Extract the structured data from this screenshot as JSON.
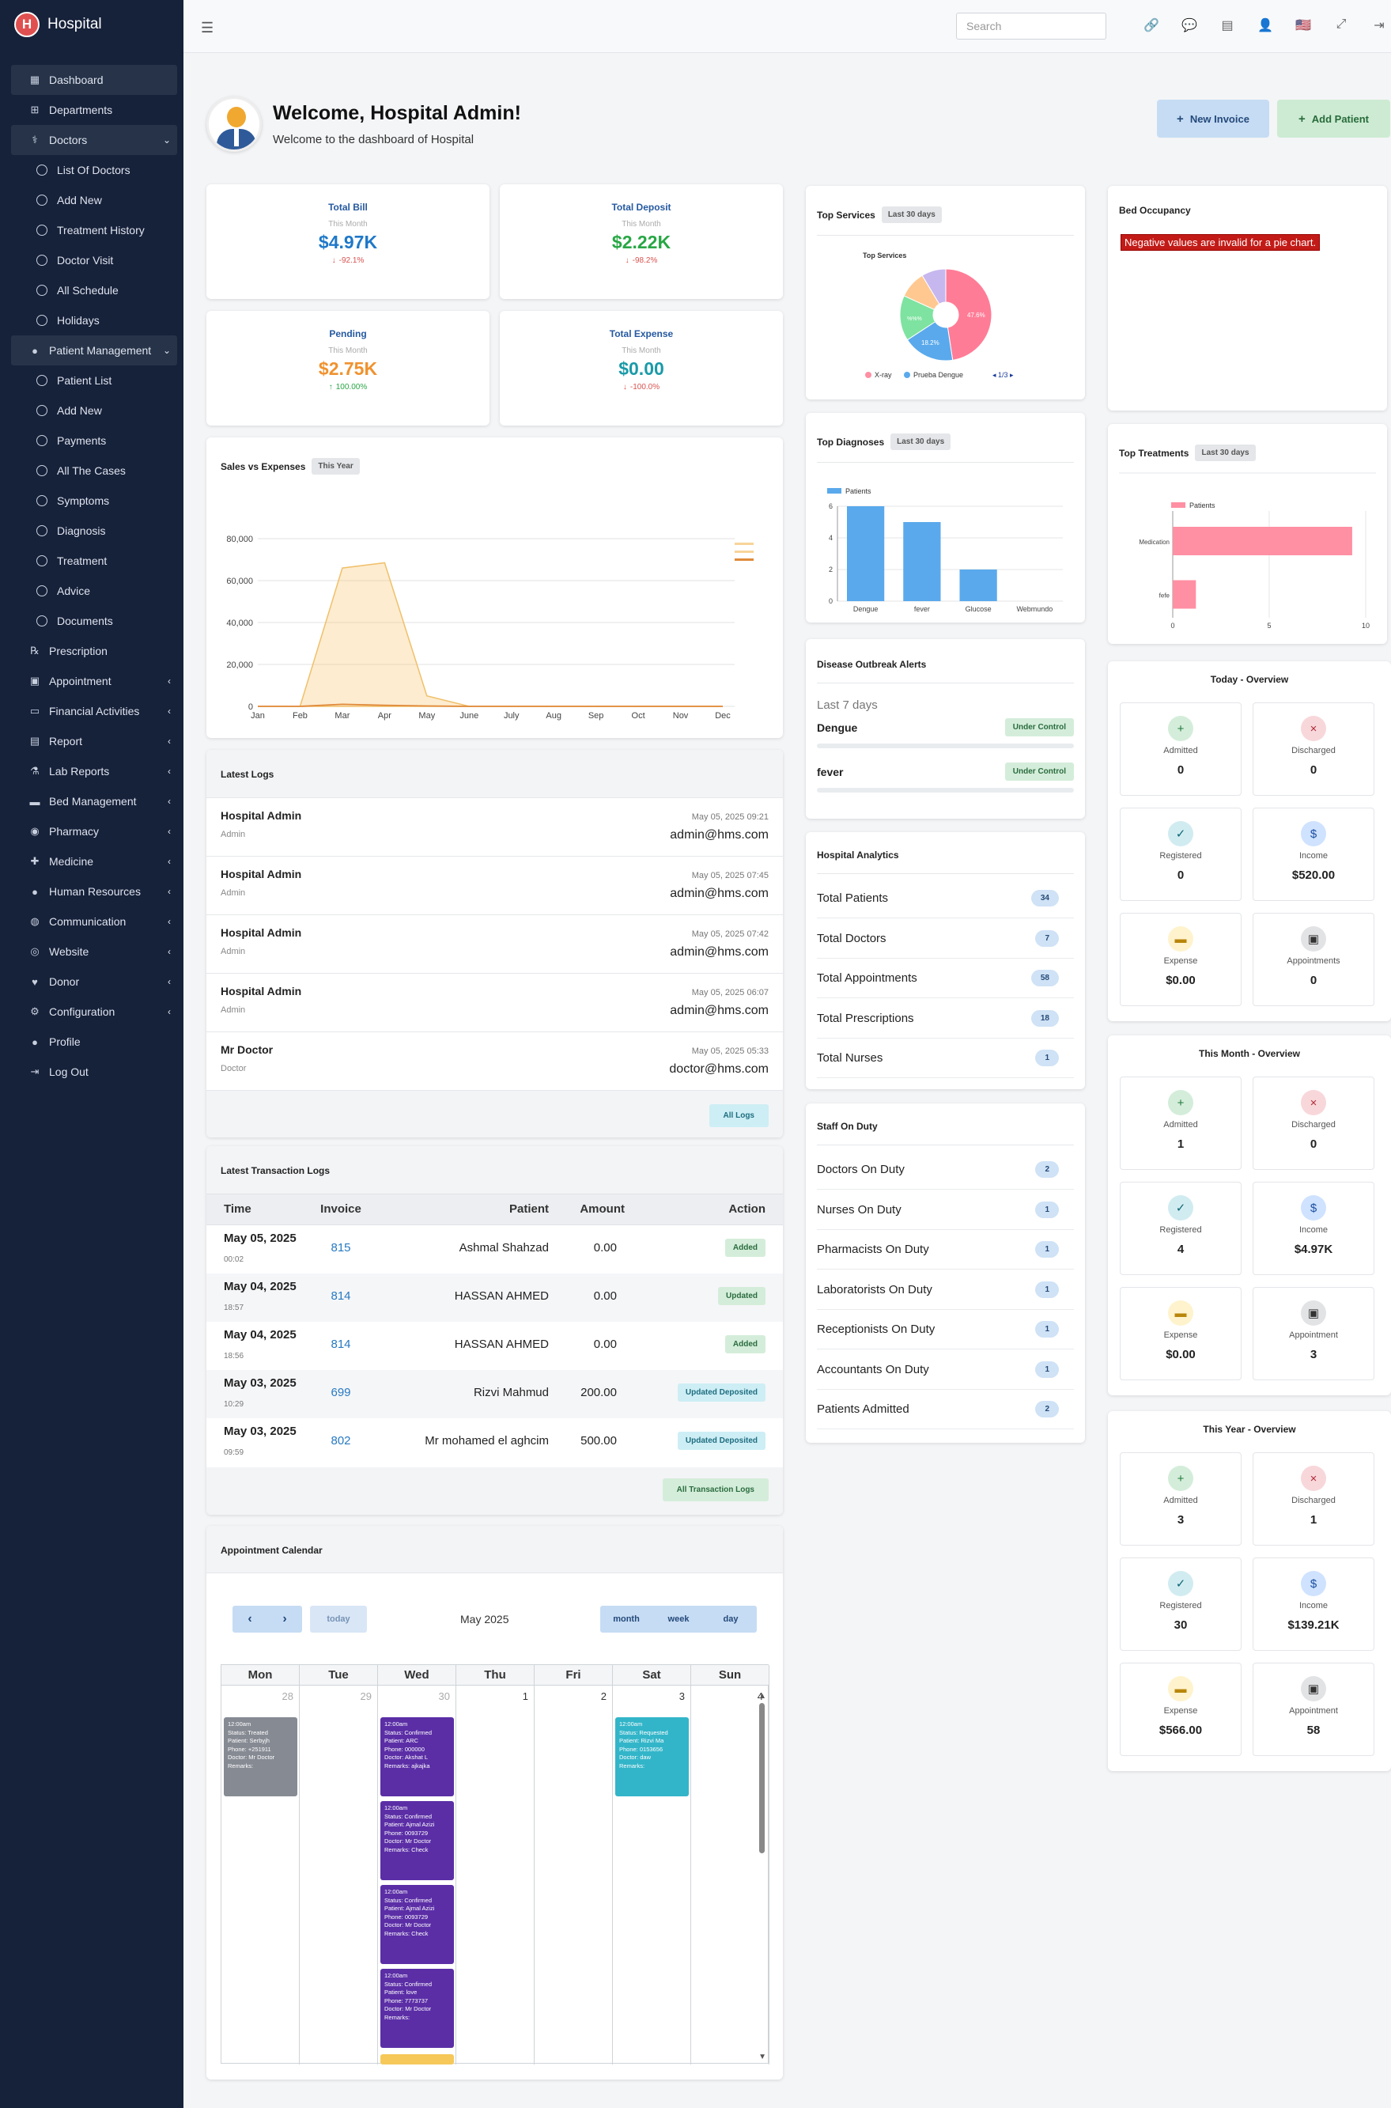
{
  "brand": {
    "logo_letter": "H",
    "name": "Hospital"
  },
  "sidebar": {
    "items": [
      {
        "label": "Dashboard",
        "icon": "dashboard-icon"
      },
      {
        "label": "Departments",
        "icon": "sitemap-icon"
      },
      {
        "label": "Doctors",
        "icon": "doctor-icon"
      },
      {
        "label": "List Of Doctors"
      },
      {
        "label": "Add New"
      },
      {
        "label": "Treatment History"
      },
      {
        "label": "Doctor Visit"
      },
      {
        "label": "All Schedule"
      },
      {
        "label": "Holidays"
      },
      {
        "label": "Patient Management",
        "icon": "user-icon"
      },
      {
        "label": "Patient List"
      },
      {
        "label": "Add New"
      },
      {
        "label": "Payments"
      },
      {
        "label": "All The Cases"
      },
      {
        "label": "Symptoms"
      },
      {
        "label": "Diagnosis"
      },
      {
        "label": "Treatment"
      },
      {
        "label": "Advice"
      },
      {
        "label": "Documents"
      },
      {
        "label": "Prescription",
        "icon": "prescription-icon"
      },
      {
        "label": "Appointment",
        "icon": "calendar-icon"
      },
      {
        "label": "Financial Activities",
        "icon": "money-icon"
      },
      {
        "label": "Report",
        "icon": "report-icon"
      },
      {
        "label": "Lab Reports",
        "icon": "flask-icon"
      },
      {
        "label": "Bed Management",
        "icon": "bed-icon"
      },
      {
        "label": "Pharmacy",
        "icon": "pills-icon"
      },
      {
        "label": "Medicine",
        "icon": "medkit-icon"
      },
      {
        "label": "Human Resources",
        "icon": "users-icon"
      },
      {
        "label": "Communication",
        "icon": "chat-icon"
      },
      {
        "label": "Website",
        "icon": "globe-icon"
      },
      {
        "label": "Donor",
        "icon": "donor-icon"
      },
      {
        "label": "Configuration",
        "icon": "gear-icon"
      },
      {
        "label": "Profile",
        "icon": "profile-icon"
      },
      {
        "label": "Log Out",
        "icon": "logout-icon"
      }
    ]
  },
  "topbar": {
    "search_placeholder": "Search"
  },
  "welcome": {
    "title": "Welcome, Hospital Admin!",
    "subtitle": "Welcome to the dashboard of Hospital"
  },
  "actions": {
    "new_invoice": "New Invoice",
    "add_patient": "Add Patient"
  },
  "stats": [
    {
      "title": "Total Bill",
      "period": "This Month",
      "value": "$4.97K",
      "change": "-92.1%",
      "color": "#1f78c8",
      "change_color": "#d9534f",
      "arrow": "↓"
    },
    {
      "title": "Total Deposit",
      "period": "This Month",
      "value": "$2.22K",
      "change": "-98.2%",
      "color": "#28a745",
      "change_color": "#d9534f",
      "arrow": "↓"
    },
    {
      "title": "Pending",
      "period": "This Month",
      "value": "$2.75K",
      "change": "100.00%",
      "color": "#f0922e",
      "change_color": "#28a745",
      "arrow": "↑"
    },
    {
      "title": "Total Expense",
      "period": "This Month",
      "value": "$0.00",
      "change": "-100.0%",
      "color": "#1a9aa8",
      "change_color": "#d9534f",
      "arrow": "↓"
    }
  ],
  "sales": {
    "title": "Sales vs Expenses",
    "pill": "This Year"
  },
  "logs": {
    "title": "Latest Logs",
    "rows": [
      {
        "name": "Hospital Admin",
        "role": "Admin",
        "time": "May 05, 2025 09:21",
        "email": "admin@hms.com"
      },
      {
        "name": "Hospital Admin",
        "role": "Admin",
        "time": "May 05, 2025 07:45",
        "email": "admin@hms.com"
      },
      {
        "name": "Hospital Admin",
        "role": "Admin",
        "time": "May 05, 2025 07:42",
        "email": "admin@hms.com"
      },
      {
        "name": "Hospital Admin",
        "role": "Admin",
        "time": "May 05, 2025 06:07",
        "email": "admin@hms.com"
      },
      {
        "name": "Mr Doctor",
        "role": "Doctor",
        "time": "May 05, 2025 05:33",
        "email": "doctor@hms.com"
      }
    ],
    "button": "All Logs"
  },
  "transactions": {
    "title": "Latest Transaction Logs",
    "headers": [
      "Time",
      "Invoice",
      "Patient",
      "Amount",
      "Action"
    ],
    "rows": [
      {
        "date": "May 05, 2025",
        "time": "00:02",
        "invoice": "815",
        "patient": "Ashmal Shahzad",
        "amount": "0.00",
        "action": "Added",
        "style": "b-green"
      },
      {
        "date": "May 04, 2025",
        "time": "18:57",
        "invoice": "814",
        "patient": "HASSAN AHMED",
        "amount": "0.00",
        "action": "Updated",
        "style": "b-green"
      },
      {
        "date": "May 04, 2025",
        "time": "18:56",
        "invoice": "814",
        "patient": "HASSAN AHMED",
        "amount": "0.00",
        "action": "Added",
        "style": "b-green"
      },
      {
        "date": "May 03, 2025",
        "time": "10:29",
        "invoice": "699",
        "patient": "Rizvi Mahmud",
        "amount": "200.00",
        "action": "Updated Deposited",
        "style": "b-cyan"
      },
      {
        "date": "May 03, 2025",
        "time": "09:59",
        "invoice": "802",
        "patient": "Mr mohamed el aghcim",
        "amount": "500.00",
        "action": "Updated Deposited",
        "style": "b-cyan"
      }
    ],
    "button": "All Transaction Logs"
  },
  "calendar": {
    "title": "Appointment Calendar",
    "today": "today",
    "month_label": "May 2025",
    "views": [
      "month",
      "week",
      "day"
    ],
    "weekdays": [
      "Mon",
      "Tue",
      "Wed",
      "Thu",
      "Fri",
      "Sat",
      "Sun"
    ],
    "dates": [
      "28",
      "29",
      "30",
      "1",
      "2",
      "3",
      "4"
    ]
  },
  "top_services": {
    "title": "Top Services",
    "pill": "Last 30 days",
    "chart_title": "Top Services",
    "legend": [
      "X-ray",
      "Prueba Dengue"
    ],
    "pager": "1/3",
    "labels": [
      "47.6%",
      "18.2%",
      "%%%"
    ]
  },
  "top_diagnoses": {
    "title": "Top Diagnoses",
    "pill": "Last 30 days",
    "legend": "Patients"
  },
  "outbreak": {
    "title": "Disease Outbreak Alerts",
    "period": "Last 7 days",
    "rows": [
      {
        "name": "Dengue",
        "status": "Under Control"
      },
      {
        "name": "fever",
        "status": "Under Control"
      }
    ]
  },
  "analytics": {
    "title": "Hospital Analytics",
    "rows": [
      {
        "label": "Total Patients",
        "value": "34"
      },
      {
        "label": "Total Doctors",
        "value": "7"
      },
      {
        "label": "Total Appointments",
        "value": "58"
      },
      {
        "label": "Total Prescriptions",
        "value": "18"
      },
      {
        "label": "Total Nurses",
        "value": "1"
      }
    ]
  },
  "staff": {
    "title": "Staff On Duty",
    "rows": [
      {
        "label": "Doctors On Duty",
        "value": "2"
      },
      {
        "label": "Nurses On Duty",
        "value": "1"
      },
      {
        "label": "Pharmacists On Duty",
        "value": "1"
      },
      {
        "label": "Laboratorists On Duty",
        "value": "1"
      },
      {
        "label": "Receptionists On Duty",
        "value": "1"
      },
      {
        "label": "Accountants On Duty",
        "value": "1"
      },
      {
        "label": "Patients Admitted",
        "value": "2"
      }
    ]
  },
  "bed": {
    "title": "Bed Occupancy",
    "error": "Negative values are invalid for a pie chart."
  },
  "top_treatments": {
    "title": "Top Treatments",
    "pill": "Last 30 days",
    "legend": "Patients"
  },
  "overviews": [
    {
      "title": "Today - Overview",
      "cells": [
        {
          "label": "Admitted",
          "value": "0"
        },
        {
          "label": "Discharged",
          "value": "0"
        },
        {
          "label": "Registered",
          "value": "0"
        },
        {
          "label": "Income",
          "value": "$520.00"
        },
        {
          "label": "Expense",
          "value": "$0.00"
        },
        {
          "label": "Appointments",
          "value": "0"
        }
      ]
    },
    {
      "title": "This Month - Overview",
      "cells": [
        {
          "label": "Admitted",
          "value": "1"
        },
        {
          "label": "Discharged",
          "value": "0"
        },
        {
          "label": "Registered",
          "value": "4"
        },
        {
          "label": "Income",
          "value": "$4.97K"
        },
        {
          "label": "Expense",
          "value": "$0.00"
        },
        {
          "label": "Appointment",
          "value": "3"
        }
      ]
    },
    {
      "title": "This Year - Overview",
      "cells": [
        {
          "label": "Admitted",
          "value": "3"
        },
        {
          "label": "Discharged",
          "value": "1"
        },
        {
          "label": "Registered",
          "value": "30"
        },
        {
          "label": "Income",
          "value": "$139.21K"
        },
        {
          "label": "Expense",
          "value": "$566.00"
        },
        {
          "label": "Appointment",
          "value": "58"
        }
      ]
    }
  ],
  "chart_data": [
    {
      "type": "area",
      "title": "Sales vs Expenses",
      "categories": [
        "Jan",
        "Feb",
        "Mar",
        "Apr",
        "May",
        "June",
        "July",
        "Aug",
        "Sep",
        "Oct",
        "Nov",
        "Dec"
      ],
      "series": [
        {
          "values": [
            0,
            0,
            66000,
            68500,
            5000,
            0,
            0,
            0,
            0,
            0,
            0,
            0
          ]
        },
        {
          "values": [
            0,
            0,
            1000,
            500,
            200,
            0,
            0,
            0,
            0,
            0,
            0,
            0
          ]
        }
      ],
      "ylim": [
        0,
        80000
      ],
      "yticks": [
        "0",
        "20,000",
        "40,000",
        "60,000",
        "80,000"
      ]
    },
    {
      "type": "pie",
      "title": "Top Services",
      "values": [
        47.6,
        18.2,
        16.0,
        9.6,
        8.6
      ],
      "colors": [
        "#ff7c96",
        "#5aa9ec",
        "#7ee3a0",
        "#ffc890",
        "#c7b7ef"
      ]
    },
    {
      "type": "bar",
      "title": "Top Diagnoses",
      "categories": [
        "Dengue",
        "fever",
        "Glucose",
        "Webmundo"
      ],
      "series": [
        {
          "name": "Patients",
          "values": [
            6,
            5,
            2,
            0
          ]
        }
      ],
      "ylim": [
        0,
        6
      ],
      "yticks": [
        "0",
        "2",
        "4",
        "6"
      ]
    },
    {
      "type": "bar",
      "title": "Top Treatments",
      "categories": [
        "Medication",
        "fefe"
      ],
      "series": [
        {
          "name": "Patients",
          "values": [
            9.3,
            1.2
          ]
        }
      ],
      "xlim": [
        0,
        10
      ],
      "xticks": [
        "0",
        "5",
        "10"
      ]
    }
  ]
}
